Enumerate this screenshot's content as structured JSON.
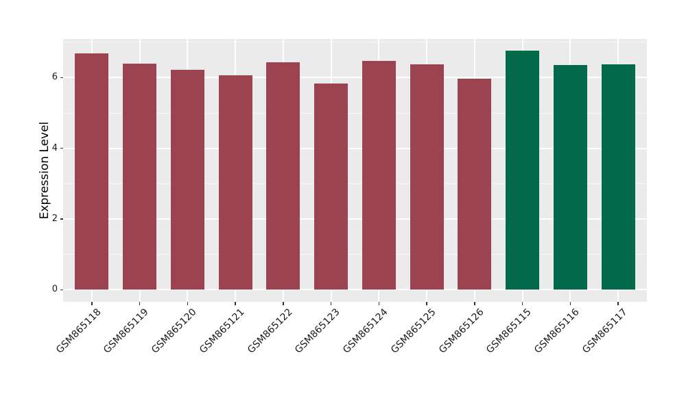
{
  "chart_data": {
    "type": "bar",
    "title": "",
    "xlabel": "",
    "ylabel": "Expression Level",
    "categories": [
      "GSM865118",
      "GSM865119",
      "GSM865120",
      "GSM865121",
      "GSM865122",
      "GSM865123",
      "GSM865124",
      "GSM865125",
      "GSM865126",
      "GSM865115",
      "GSM865116",
      "GSM865117"
    ],
    "values": [
      6.68,
      6.39,
      6.21,
      6.06,
      6.44,
      5.84,
      6.48,
      6.37,
      5.96,
      6.76,
      6.35,
      6.37
    ],
    "bar_groups": [
      0,
      0,
      0,
      0,
      0,
      0,
      0,
      0,
      0,
      1,
      1,
      1
    ],
    "group_colors": [
      "#9B4350",
      "#03694B"
    ],
    "ylim": [
      -0.34,
      7.09
    ],
    "yticks": [
      0,
      2,
      4,
      6
    ],
    "yticks_minor": [
      1,
      3,
      5,
      7
    ],
    "bar_width_ratio": 0.7,
    "grid": true,
    "legend": "none",
    "panel_bg": "#EBEBEB",
    "grid_color": "#FFFFFF",
    "tick_color": "#333333",
    "text_color": "#1A1A1A",
    "x_label_angle_deg": 45
  }
}
